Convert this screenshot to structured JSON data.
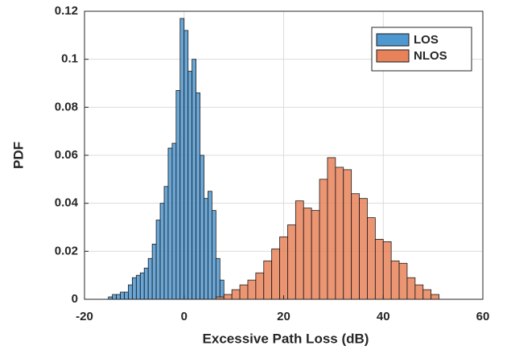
{
  "chart_data": {
    "type": "histogram",
    "xlabel": "Excessive Path Loss (dB)",
    "ylabel": "PDF",
    "xlim": [
      -20,
      60
    ],
    "ylim": [
      0,
      0.12
    ],
    "xticks": [
      -20,
      0,
      20,
      40,
      60
    ],
    "yticks": [
      0,
      0.02,
      0.04,
      0.06,
      0.08,
      0.1,
      0.12
    ],
    "grid": true,
    "legend": "northeast",
    "series": [
      {
        "name": "LOS",
        "color": "#4f97cf",
        "bins": [
          -15.2,
          -14.4,
          -13.6,
          -12.8,
          -12.0,
          -11.2,
          -10.4,
          -9.6,
          -8.8,
          -8.0,
          -7.2,
          -6.4,
          -5.6,
          -4.8,
          -4.0,
          -3.2,
          -2.4,
          -1.6,
          -0.8,
          0.0,
          0.8,
          1.6,
          2.4,
          3.2,
          4.0,
          4.8,
          5.6,
          6.4,
          7.2,
          8.0
        ],
        "values": [
          0.001,
          0.002,
          0.002,
          0.003,
          0.003,
          0.006,
          0.009,
          0.01,
          0.011,
          0.013,
          0.017,
          0.023,
          0.033,
          0.04,
          0.047,
          0.063,
          0.065,
          0.087,
          0.117,
          0.112,
          0.095,
          0.1,
          0.086,
          0.06,
          0.042,
          0.045,
          0.037,
          0.017,
          0.008
        ]
      },
      {
        "name": "NLOS",
        "color": "#e8825a",
        "bins": [
          6.4,
          8.0,
          9.6,
          11.2,
          12.8,
          14.4,
          16.0,
          17.6,
          19.2,
          20.8,
          22.4,
          24.0,
          25.6,
          27.2,
          28.8,
          30.4,
          32.0,
          33.6,
          35.2,
          36.8,
          38.4,
          40.0,
          41.6,
          43.2,
          44.8,
          46.4,
          48.0,
          49.6,
          51.2
        ],
        "values": [
          0.001,
          0.002,
          0.004,
          0.006,
          0.008,
          0.011,
          0.016,
          0.021,
          0.026,
          0.031,
          0.041,
          0.038,
          0.037,
          0.05,
          0.059,
          0.055,
          0.054,
          0.044,
          0.042,
          0.034,
          0.025,
          0.024,
          0.016,
          0.015,
          0.009,
          0.006,
          0.004,
          0.002
        ]
      }
    ]
  }
}
